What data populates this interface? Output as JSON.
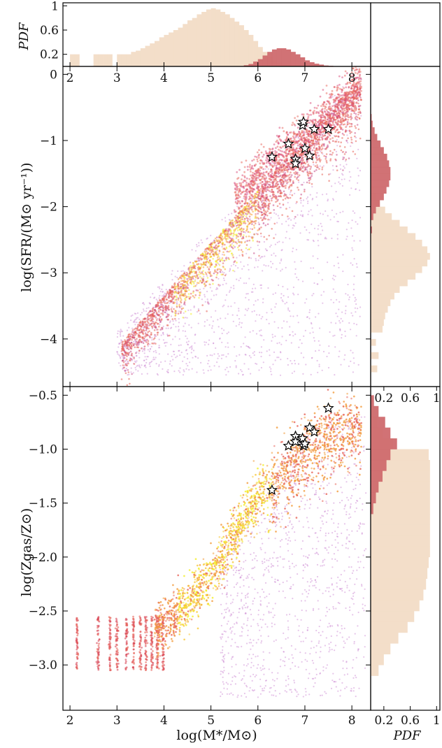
{
  "colors": {
    "hist_all": "#f2dcc6",
    "hist_obs": "#cf6a6e",
    "scatter_sparse": "#c77fcf",
    "scatter_mid": "#e8645a",
    "scatter_dense": "#f2ef2a",
    "star_fill": "#ffffff",
    "star_stroke": "#000000"
  },
  "chart_data": [
    {
      "id": "top-mass-pdf",
      "type": "bar",
      "ylabel": "PDF",
      "xlim": [
        1.85,
        8.4
      ],
      "ylim": [
        0,
        1.05
      ],
      "xticks": [
        2,
        3,
        4,
        5,
        6,
        7,
        8
      ],
      "yticks": [
        0.2,
        0.6,
        1
      ],
      "ytick_labels": [
        "0.2",
        "0.6",
        "1"
      ],
      "series": [
        {
          "role": "all",
          "bins": [
            [
              2.0,
              0.2
            ],
            [
              2.1,
              0.2
            ],
            [
              2.5,
              0.2
            ],
            [
              2.6,
              0.2
            ],
            [
              2.7,
              0.2
            ],
            [
              2.8,
              0.2
            ],
            [
              3.0,
              0.2
            ],
            [
              3.1,
              0.2
            ],
            [
              3.2,
              0.2
            ],
            [
              3.3,
              0.24
            ],
            [
              3.4,
              0.26
            ],
            [
              3.5,
              0.3
            ],
            [
              3.6,
              0.34
            ],
            [
              3.7,
              0.38
            ],
            [
              3.8,
              0.42
            ],
            [
              3.9,
              0.48
            ],
            [
              4.0,
              0.52
            ],
            [
              4.1,
              0.56
            ],
            [
              4.2,
              0.6
            ],
            [
              4.3,
              0.64
            ],
            [
              4.4,
              0.7
            ],
            [
              4.5,
              0.76
            ],
            [
              4.6,
              0.8
            ],
            [
              4.7,
              0.86
            ],
            [
              4.8,
              0.9
            ],
            [
              4.9,
              0.94
            ],
            [
              5.0,
              0.96
            ],
            [
              5.1,
              0.94
            ],
            [
              5.2,
              0.9
            ],
            [
              5.3,
              0.86
            ],
            [
              5.4,
              0.8
            ],
            [
              5.5,
              0.74
            ],
            [
              5.6,
              0.68
            ],
            [
              5.7,
              0.6
            ],
            [
              5.8,
              0.52
            ],
            [
              5.9,
              0.42
            ],
            [
              6.0,
              0.32
            ],
            [
              6.1,
              0.24
            ],
            [
              6.2,
              0.16
            ],
            [
              6.3,
              0.1
            ],
            [
              6.4,
              0.06
            ],
            [
              6.5,
              0.04
            ],
            [
              6.6,
              0.03
            ],
            [
              6.7,
              0.02
            ],
            [
              6.8,
              0.015
            ],
            [
              6.9,
              0.01
            ]
          ]
        },
        {
          "role": "observed",
          "bins": [
            [
              5.7,
              0.02
            ],
            [
              5.8,
              0.04
            ],
            [
              5.9,
              0.08
            ],
            [
              6.0,
              0.12
            ],
            [
              6.1,
              0.18
            ],
            [
              6.2,
              0.24
            ],
            [
              6.3,
              0.28
            ],
            [
              6.4,
              0.3
            ],
            [
              6.5,
              0.3
            ],
            [
              6.6,
              0.28
            ],
            [
              6.7,
              0.24
            ],
            [
              6.8,
              0.2
            ],
            [
              6.9,
              0.15
            ],
            [
              7.0,
              0.1
            ],
            [
              7.1,
              0.07
            ],
            [
              7.2,
              0.045
            ],
            [
              7.3,
              0.03
            ],
            [
              7.4,
              0.015
            ],
            [
              7.5,
              0.01
            ],
            [
              7.6,
              0.005
            ]
          ]
        }
      ]
    },
    {
      "id": "sfr-vs-mass",
      "type": "scatter",
      "ylabel": "log(SFR/(M⊙ yr⁻¹))",
      "xlim": [
        1.85,
        8.4
      ],
      "ylim": [
        -4.72,
        0.12
      ],
      "xticks": [
        2,
        3,
        4,
        5,
        6,
        7,
        8
      ],
      "xtick_labels": [
        "2",
        "3",
        "4",
        "5",
        "6",
        "7",
        "8"
      ],
      "yticks": [
        0,
        -1,
        -2,
        -3,
        -4
      ],
      "ytick_labels": [
        "0",
        "−1",
        "−2",
        "−3",
        "−4"
      ],
      "stars": [
        [
          6.3,
          -1.25
        ],
        [
          6.65,
          -1.05
        ],
        [
          6.8,
          -1.28
        ],
        [
          6.8,
          -1.35
        ],
        [
          6.95,
          -0.77
        ],
        [
          6.97,
          -0.72
        ],
        [
          7.0,
          -1.12
        ],
        [
          7.1,
          -1.23
        ],
        [
          7.2,
          -0.83
        ],
        [
          7.5,
          -0.83
        ]
      ]
    },
    {
      "id": "sfr-pdf",
      "type": "bar",
      "orientation": "horizontal",
      "ylim": [
        -4.72,
        0.12
      ],
      "series": [
        {
          "role": "all",
          "bins": [
            [
              -4.5,
              0.1
            ],
            [
              -4.3,
              0.12
            ],
            [
              -4.1,
              0.08
            ],
            [
              -3.9,
              0.18
            ],
            [
              -3.8,
              0.2
            ],
            [
              -3.7,
              0.22
            ],
            [
              -3.6,
              0.26
            ],
            [
              -3.5,
              0.3
            ],
            [
              -3.4,
              0.36
            ],
            [
              -3.3,
              0.44
            ],
            [
              -3.2,
              0.56
            ],
            [
              -3.1,
              0.68
            ],
            [
              -3.0,
              0.78
            ],
            [
              -2.9,
              0.86
            ],
            [
              -2.8,
              0.9
            ],
            [
              -2.7,
              0.86
            ],
            [
              -2.6,
              0.78
            ],
            [
              -2.5,
              0.68
            ],
            [
              -2.4,
              0.56
            ],
            [
              -2.3,
              0.44
            ],
            [
              -2.2,
              0.32
            ],
            [
              -2.1,
              0.22
            ],
            [
              -2.0,
              0.14
            ],
            [
              -1.9,
              0.08
            ],
            [
              -1.8,
              0.05
            ],
            [
              -1.7,
              0.03
            ],
            [
              -1.6,
              0.02
            ],
            [
              -1.5,
              0.01
            ]
          ]
        },
        {
          "role": "observed",
          "bins": [
            [
              -2.4,
              0.02
            ],
            [
              -2.2,
              0.04
            ],
            [
              -2.1,
              0.08
            ],
            [
              -2.0,
              0.14
            ],
            [
              -1.9,
              0.2
            ],
            [
              -1.8,
              0.24
            ],
            [
              -1.7,
              0.28
            ],
            [
              -1.6,
              0.3
            ],
            [
              -1.5,
              0.3
            ],
            [
              -1.4,
              0.28
            ],
            [
              -1.3,
              0.25
            ],
            [
              -1.2,
              0.2
            ],
            [
              -1.1,
              0.15
            ],
            [
              -1.0,
              0.1
            ],
            [
              -0.9,
              0.06
            ],
            [
              -0.8,
              0.03
            ],
            [
              -0.7,
              0.015
            ]
          ]
        }
      ]
    },
    {
      "id": "zgas-vs-mass",
      "type": "scatter",
      "xlabel": "log(M*/M⊙)",
      "ylabel": "log(Zgas/Z⊙)",
      "xlim": [
        1.85,
        8.4
      ],
      "ylim": [
        -3.42,
        -0.42
      ],
      "xticks": [
        2,
        3,
        4,
        5,
        6,
        7,
        8
      ],
      "xtick_labels": [
        "2",
        "3",
        "4",
        "5",
        "6",
        "7",
        "8"
      ],
      "yticks": [
        -0.5,
        -1.0,
        -1.5,
        -2.0,
        -2.5,
        -3.0
      ],
      "ytick_labels": [
        "−0.5",
        "−1.0",
        "−1.5",
        "−2.0",
        "−2.5",
        "−3.0"
      ],
      "stars": [
        [
          6.3,
          -1.38
        ],
        [
          6.65,
          -0.97
        ],
        [
          6.8,
          -0.88
        ],
        [
          6.8,
          -0.93
        ],
        [
          6.95,
          -0.9
        ],
        [
          6.97,
          -0.97
        ],
        [
          7.0,
          -0.95
        ],
        [
          7.1,
          -0.8
        ],
        [
          7.2,
          -0.84
        ],
        [
          7.5,
          -0.62
        ]
      ]
    },
    {
      "id": "zgas-pdf",
      "type": "bar",
      "orientation": "horizontal",
      "xlabel": "PDF",
      "xlim": [
        0,
        1.05
      ],
      "ylim": [
        -3.42,
        -0.42
      ],
      "xticks": [
        0.2,
        0.6,
        1
      ],
      "xtick_labels": [
        "0.2",
        "0.6",
        "1"
      ],
      "series": [
        {
          "role": "all",
          "bins": [
            [
              -3.1,
              0.12
            ],
            [
              -3.0,
              0.2
            ],
            [
              -2.9,
              0.3
            ],
            [
              -2.8,
              0.42
            ],
            [
              -2.7,
              0.56
            ],
            [
              -2.6,
              0.66
            ],
            [
              -2.5,
              0.74
            ],
            [
              -2.4,
              0.8
            ],
            [
              -2.3,
              0.84
            ],
            [
              -2.2,
              0.86
            ],
            [
              -2.1,
              0.88
            ],
            [
              -2.0,
              0.9
            ],
            [
              -1.9,
              0.9
            ],
            [
              -1.8,
              0.9
            ],
            [
              -1.7,
              0.9
            ],
            [
              -1.6,
              0.9
            ],
            [
              -1.5,
              0.9
            ],
            [
              -1.4,
              0.9
            ],
            [
              -1.3,
              0.9
            ],
            [
              -1.2,
              0.9
            ],
            [
              -1.1,
              0.88
            ],
            [
              -1.0,
              0.34
            ],
            [
              -0.9,
              0.18
            ],
            [
              -0.8,
              0.1
            ],
            [
              -0.7,
              0.05
            ]
          ]
        },
        {
          "role": "observed",
          "bins": [
            [
              -1.6,
              0.04
            ],
            [
              -1.5,
              0.08
            ],
            [
              -1.4,
              0.12
            ],
            [
              -1.3,
              0.18
            ],
            [
              -1.2,
              0.24
            ],
            [
              -1.1,
              0.3
            ],
            [
              -1.0,
              0.4
            ],
            [
              -0.9,
              0.3
            ],
            [
              -0.8,
              0.22
            ],
            [
              -0.7,
              0.12
            ],
            [
              -0.6,
              0.05
            ]
          ]
        }
      ]
    }
  ]
}
